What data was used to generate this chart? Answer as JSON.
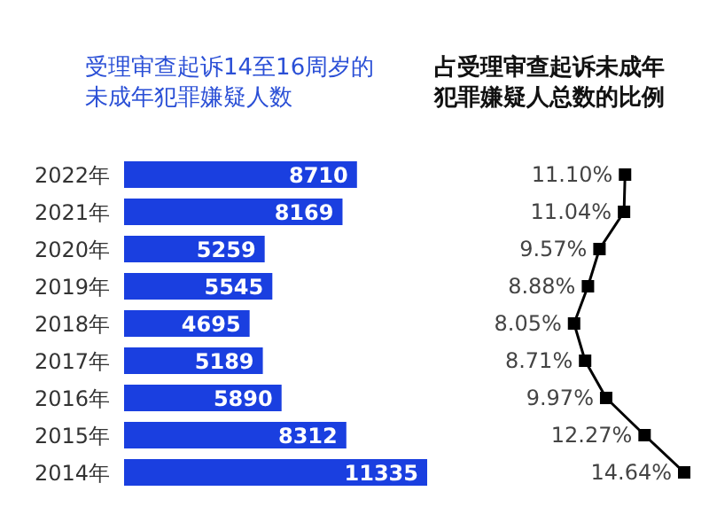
{
  "chart_data": [
    {
      "type": "bar",
      "orientation": "horizontal",
      "title": "受理审查起诉14至16周岁的未成年犯罪嫌疑人数",
      "categories": [
        "2022年",
        "2021年",
        "2020年",
        "2019年",
        "2018年",
        "2017年",
        "2016年",
        "2015年",
        "2014年"
      ],
      "values": [
        8710,
        8169,
        5259,
        5545,
        4695,
        5189,
        5890,
        8312,
        11335
      ],
      "color": "#1a3fe0",
      "data_labels": true
    },
    {
      "type": "line",
      "orientation": "horizontal",
      "title": "占受理审查起诉未成年犯罪嫌疑人总数的比例",
      "categories": [
        null,
        null,
        null,
        null,
        null,
        null,
        null,
        null,
        null
      ],
      "values": [
        11.1,
        11.04,
        9.57,
        8.88,
        8.05,
        8.71,
        9.97,
        12.27,
        14.64
      ],
      "value_labels": [
        "11.10%",
        "11.04%",
        "9.57%",
        "8.88%",
        "8.05%",
        "8.71%",
        "9.97%",
        "12.27%",
        "14.64%"
      ],
      "color": "#000000",
      "marker": "square"
    }
  ]
}
